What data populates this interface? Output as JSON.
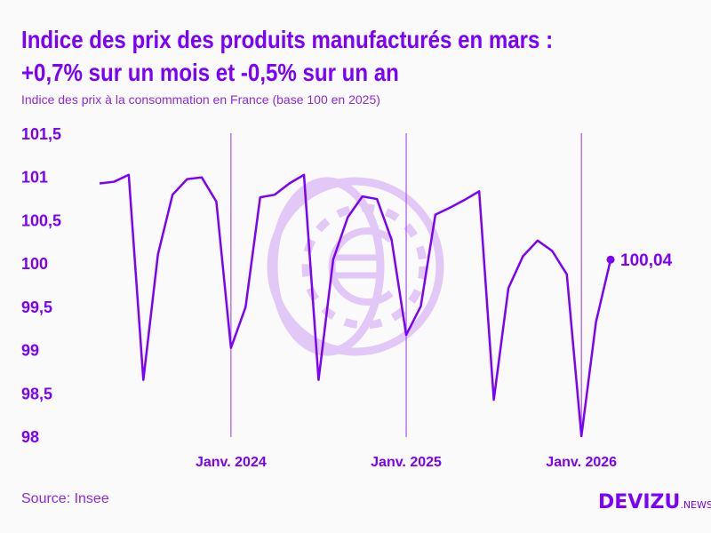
{
  "title_line1": "Indice des prix des produits manufacturés en mars :",
  "title_line2": "+0,7% sur un mois et -0,5% sur un an",
  "subtitle": "Indice des prix à la consommation en France (base 100 en 2025)",
  "source": "Source: Insee",
  "logo": {
    "main": "DEVIZU",
    "suffix": ".NEWS"
  },
  "colors": {
    "accent": "#7a00ff",
    "gridline": "#a855f7",
    "watermark": "#e2c8f7"
  },
  "watermark_icon": "euro-coin-icon",
  "chart_data": {
    "type": "line",
    "title": "Indice des prix des produits manufacturés en mars : +0,7% sur un mois et -0,5% sur un an",
    "ylim": [
      98,
      101.5
    ],
    "yticks": [
      "98",
      "98,5",
      "99",
      "99,5",
      "100",
      "100,5",
      "101",
      "101,5"
    ],
    "ytick_values": [
      98,
      98.5,
      99,
      99.5,
      100,
      100.5,
      101,
      101.5
    ],
    "xtick_labels": [
      "Janv. 2024",
      "Janv. 2025",
      "Janv. 2026"
    ],
    "xtick_dates": [
      "2024-01",
      "2025-01",
      "2026-01"
    ],
    "grid": "vertical lines at January",
    "x": [
      "2023-04",
      "2023-05",
      "2023-06",
      "2023-07",
      "2023-08",
      "2023-09",
      "2023-10",
      "2023-11",
      "2023-12",
      "2024-01",
      "2024-02",
      "2024-03",
      "2024-04",
      "2024-05",
      "2024-06",
      "2024-07",
      "2024-08",
      "2024-09",
      "2024-10",
      "2024-11",
      "2024-12",
      "2025-01",
      "2025-02",
      "2025-03",
      "2025-04",
      "2025-05",
      "2025-06",
      "2025-07",
      "2025-08",
      "2025-09",
      "2025-10",
      "2025-11",
      "2025-12",
      "2026-01",
      "2026-02",
      "2026-03"
    ],
    "values": [
      100.92,
      100.94,
      101.02,
      98.65,
      100.1,
      100.79,
      100.97,
      100.99,
      100.71,
      99.02,
      99.49,
      100.76,
      100.79,
      100.92,
      101.02,
      98.65,
      100.04,
      100.53,
      100.77,
      100.74,
      100.27,
      99.17,
      99.5,
      100.56,
      100.64,
      100.73,
      100.83,
      98.42,
      99.71,
      100.08,
      100.26,
      100.14,
      99.87,
      98.0,
      99.32,
      100.04
    ],
    "last_label": "100,04"
  }
}
